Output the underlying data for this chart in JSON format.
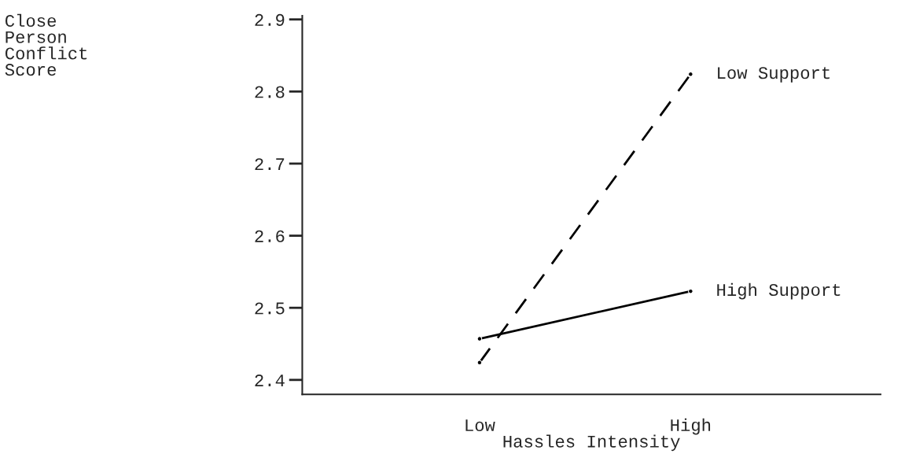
{
  "chart_data": {
    "type": "line",
    "xlabel": "Hassles Intensity",
    "annotations": [
      "Close Person Conflict Score"
    ],
    "categories": [
      "Low",
      "High"
    ],
    "series": [
      {
        "name": "Low Support",
        "color": "#000000",
        "line_style": "dashed",
        "values": [
          2.424,
          2.824
        ]
      },
      {
        "name": "High Support",
        "color": "#000000",
        "line_style": "solid",
        "values": [
          2.457,
          2.523
        ]
      }
    ],
    "ylim": [
      2.38,
      2.905
    ],
    "yticks": [
      2.4,
      2.5,
      2.6,
      2.7,
      2.8,
      2.9
    ],
    "marker": "circle",
    "grid": false,
    "legend": false
  }
}
